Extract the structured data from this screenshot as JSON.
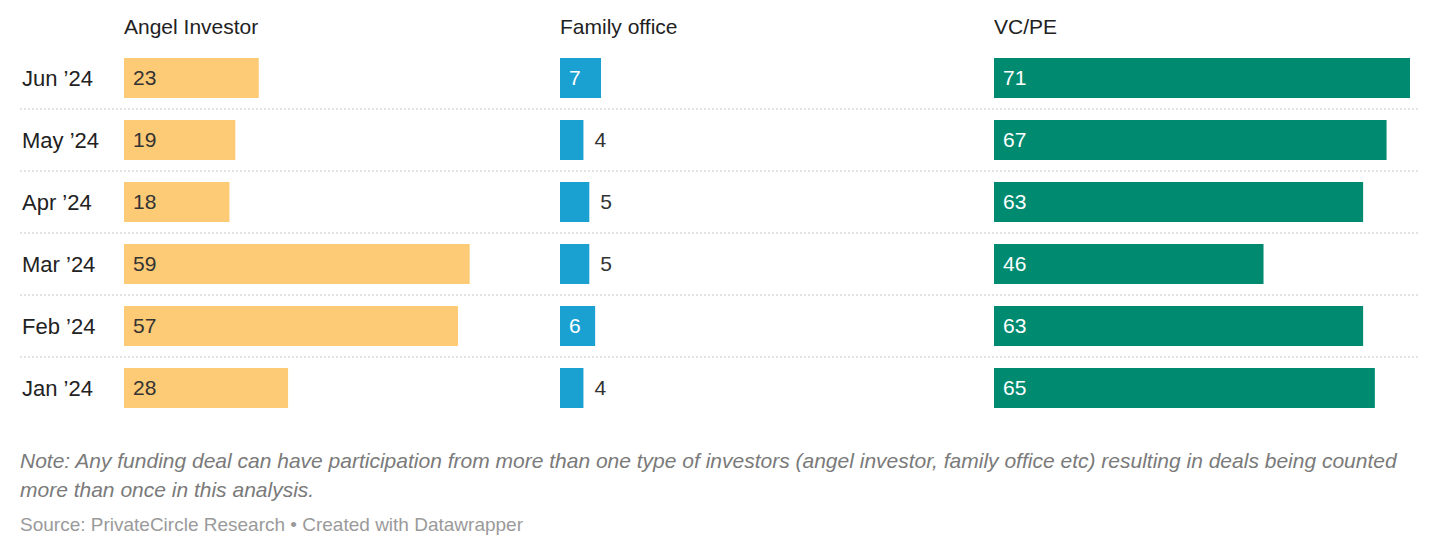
{
  "chart_data": {
    "type": "bar",
    "orientation": "horizontal",
    "data_labels": true,
    "tick_labels": "y",
    "categories": [
      "Jun ’24",
      "May ’24",
      "Apr ’24",
      "Mar ’24",
      "Feb ’24",
      "Jan ’24"
    ],
    "series": [
      {
        "name": "Angel Investor",
        "color": "#fdca76",
        "values": [
          23,
          19,
          18,
          59,
          57,
          28
        ]
      },
      {
        "name": "Family office",
        "color": "#1aa1d2",
        "values": [
          7,
          4,
          5,
          5,
          6,
          4
        ]
      },
      {
        "name": "VC/PE",
        "color": "#008b71",
        "values": [
          71,
          67,
          63,
          46,
          63,
          65
        ]
      }
    ],
    "note": "Note: Any funding deal can have participation from more than one type of investors (angel investor, family office etc) resulting in deals being counted more than once in this analysis.",
    "source": "Source: PrivateCircle Research • Created with Datawrapper"
  }
}
